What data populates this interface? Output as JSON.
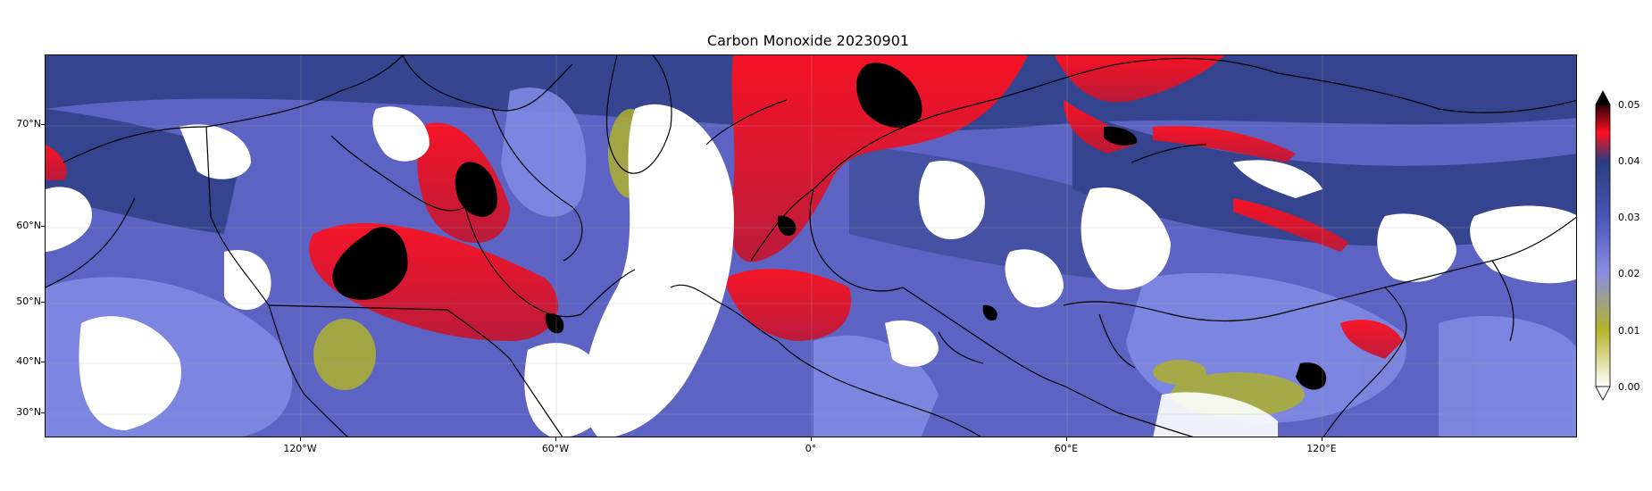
{
  "title": "Carbon Monoxide 20230901",
  "lat_labels": [
    "70°N",
    "60°N",
    "50°N",
    "40°N",
    "30°N"
  ],
  "lon_labels": [
    "120°W",
    "60°W",
    "0°",
    "60°E",
    "120°E"
  ],
  "colorbar": {
    "ticks": [
      "0.05",
      "0.04",
      "0.03",
      "0.02",
      "0.01",
      "0.00"
    ],
    "colors": {
      "low": "#ffffff",
      "yellow": "#b4b428",
      "purple": "#7a80e6",
      "navy": "#2b3c7d",
      "red": "#ff1020",
      "black": "#000000"
    }
  },
  "colors": {
    "background": "#5f66c4",
    "cloud": "#ffffff",
    "high_co": "#ff1e2e",
    "very_high_co": "#000000"
  }
}
